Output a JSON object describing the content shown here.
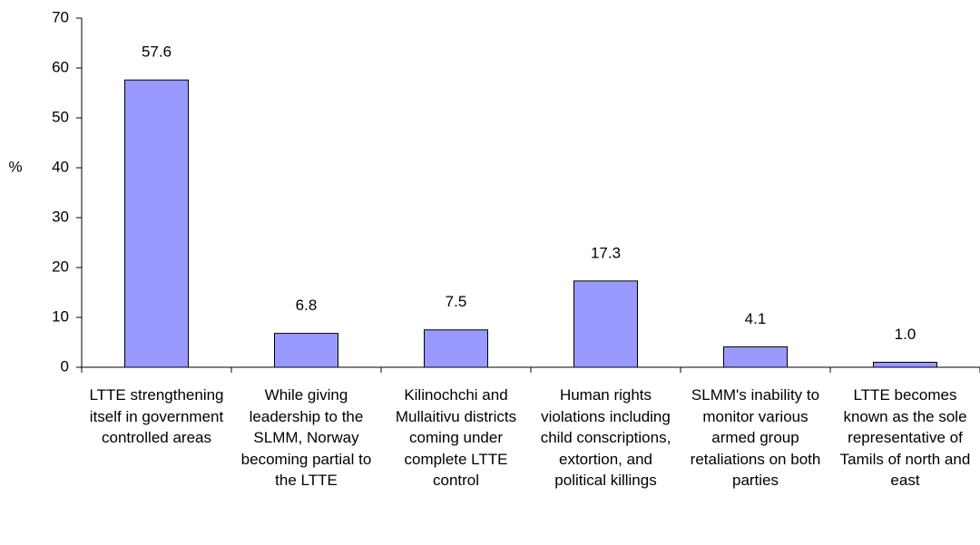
{
  "chart_data": {
    "type": "bar",
    "y_label": "%",
    "categories": [
      "LTTE strengthening itself in government controlled areas",
      "While giving leadership to the SLMM, Norway becoming partial to the LTTE",
      "Kilinochchi and Mullaitivu districts coming under complete LTTE control",
      "Human rights violations including child conscriptions, extortion, and political killings",
      "SLMM's inability to monitor various armed group retaliations on both parties",
      "LTTE becomes known as the sole representative of Tamils of north and east"
    ],
    "values": [
      57.6,
      6.8,
      7.5,
      17.3,
      4.1,
      1.0
    ],
    "value_labels": [
      "57.6",
      "6.8",
      "7.5",
      "17.3",
      "4.1",
      "1.0"
    ],
    "color": "#9999ff",
    "ylim": [
      0,
      70
    ],
    "yticks": [
      0,
      10,
      20,
      30,
      40,
      50,
      60,
      70
    ],
    "grid": false
  }
}
